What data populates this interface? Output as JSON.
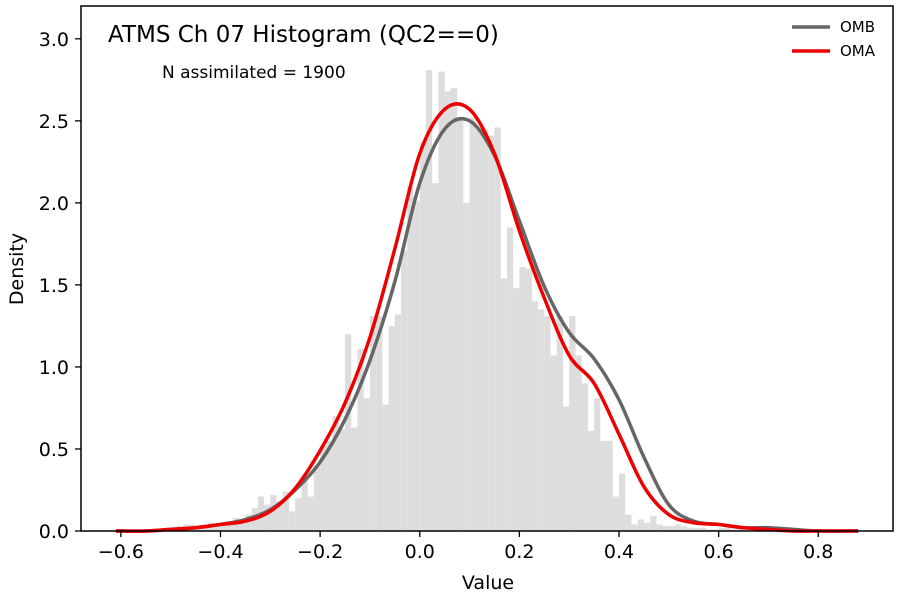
{
  "chart_data": {
    "type": "histogram",
    "title": "ATMS Ch 07 Histogram (QC2==0)",
    "annotation": "N assimilated = 1900",
    "xlabel": "Value",
    "ylabel": "Density",
    "xlim": [
      -0.68,
      0.95
    ],
    "ylim": [
      0,
      3.2
    ],
    "xticks": [
      -0.6,
      -0.4,
      -0.2,
      0.0,
      0.2,
      0.4,
      0.6,
      0.8
    ],
    "xtick_labels": [
      "−0.6",
      "−0.4",
      "−0.2",
      "0.0",
      "0.2",
      "0.4",
      "0.6",
      "0.8"
    ],
    "yticks": [
      0.0,
      0.5,
      1.0,
      1.5,
      2.0,
      2.5,
      3.0
    ],
    "ytick_labels": [
      "0.0",
      "0.5",
      "1.0",
      "1.5",
      "2.0",
      "2.5",
      "3.0"
    ],
    "grid": false,
    "legend_position": "top-right",
    "histogram": {
      "color": "#dddddd",
      "bin_width": 0.0125,
      "bin_start": -0.6125,
      "densities": [
        0.0,
        0.0,
        0.0,
        0.0,
        0.0,
        0.0,
        0.0,
        0.01,
        0.02,
        0.02,
        0.03,
        0.04,
        0.04,
        0.03,
        0.04,
        0.05,
        0.04,
        0.05,
        0.06,
        0.08,
        0.06,
        0.1,
        0.14,
        0.21,
        0.16,
        0.22,
        0.18,
        0.24,
        0.12,
        0.2,
        0.32,
        0.21,
        0.4,
        0.52,
        0.55,
        0.7,
        0.62,
        1.2,
        0.63,
        1.11,
        0.81,
        1.31,
        1.31,
        0.77,
        1.25,
        1.32,
        1.71,
        2.1,
        2.01,
        2.37,
        2.81,
        2.12,
        2.8,
        2.68,
        2.7,
        2.5,
        2.0,
        2.52,
        2.45,
        2.45,
        2.41,
        2.46,
        1.54,
        1.85,
        1.48,
        1.61,
        1.6,
        1.4,
        1.35,
        1.31,
        1.07,
        1.31,
        0.76,
        1.31,
        1.07,
        0.9,
        0.61,
        0.81,
        0.55,
        0.55,
        0.21,
        0.35,
        0.1,
        0.04,
        0.07,
        0.05,
        0.09,
        0.04,
        0.03,
        0.03,
        0.04,
        0.03,
        0.02,
        0.02,
        0.02,
        0.01,
        0.01,
        0.02,
        0.02,
        0.01,
        0.01,
        0.0,
        0.0,
        0.0,
        0.0,
        0.0,
        0.0,
        0.0,
        0.0,
        0.0,
        0.0,
        0.0
      ]
    },
    "series": [
      {
        "name": "OMB",
        "color": "#666666",
        "x": [
          -0.61,
          -0.55,
          -0.5,
          -0.45,
          -0.4,
          -0.35,
          -0.3,
          -0.25,
          -0.2,
          -0.15,
          -0.1,
          -0.05,
          0.0,
          0.05,
          0.1,
          0.15,
          0.2,
          0.25,
          0.3,
          0.35,
          0.4,
          0.45,
          0.5,
          0.55,
          0.6,
          0.65,
          0.7,
          0.75,
          0.8,
          0.88
        ],
        "y": [
          0.0,
          0.0,
          0.01,
          0.02,
          0.04,
          0.07,
          0.13,
          0.25,
          0.42,
          0.68,
          1.04,
          1.52,
          2.12,
          2.45,
          2.5,
          2.29,
          1.89,
          1.49,
          1.21,
          1.05,
          0.8,
          0.45,
          0.16,
          0.06,
          0.04,
          0.02,
          0.02,
          0.01,
          0.0,
          0.0
        ]
      },
      {
        "name": "OMA",
        "color": "#ee0000",
        "x": [
          -0.61,
          -0.55,
          -0.5,
          -0.45,
          -0.4,
          -0.35,
          -0.3,
          -0.25,
          -0.2,
          -0.15,
          -0.1,
          -0.05,
          0.0,
          0.05,
          0.1,
          0.15,
          0.2,
          0.25,
          0.3,
          0.35,
          0.4,
          0.45,
          0.5,
          0.55,
          0.6,
          0.65,
          0.7,
          0.75,
          0.8,
          0.88
        ],
        "y": [
          0.0,
          0.0,
          0.01,
          0.02,
          0.04,
          0.06,
          0.12,
          0.26,
          0.49,
          0.78,
          1.18,
          1.72,
          2.3,
          2.57,
          2.57,
          2.3,
          1.83,
          1.42,
          1.07,
          0.9,
          0.59,
          0.27,
          0.1,
          0.05,
          0.04,
          0.02,
          0.01,
          0.0,
          0.0,
          0.0
        ]
      }
    ]
  }
}
